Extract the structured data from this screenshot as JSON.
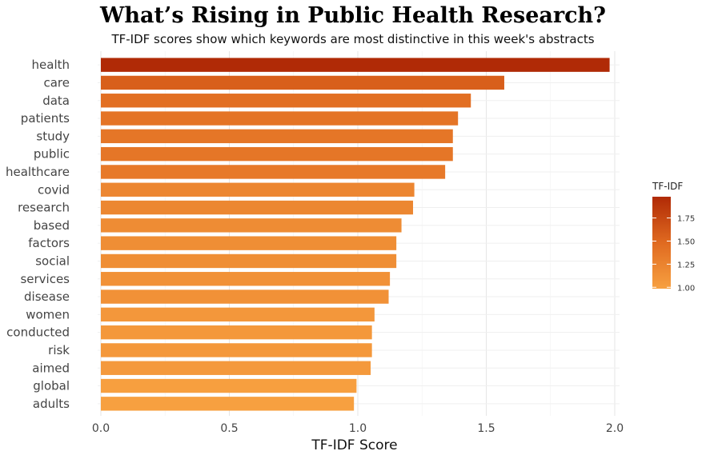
{
  "chart_data": {
    "type": "bar",
    "orientation": "horizontal",
    "title": "What’s Rising in Public Health Research?",
    "subtitle": "TF-IDF scores show which keywords are most distinctive in this week's abstracts",
    "xlabel": "TF-IDF Score",
    "ylabel": "",
    "xlim": [
      0,
      2.05
    ],
    "xticks": [
      "0.0",
      "0.5",
      "1.0",
      "1.5",
      "2.0"
    ],
    "grid": true,
    "categories": [
      "health",
      "care",
      "data",
      "patients",
      "study",
      "public",
      "healthcare",
      "covid",
      "research",
      "based",
      "factors",
      "social",
      "services",
      "disease",
      "women",
      "conducted",
      "risk",
      "aimed",
      "global",
      "adults"
    ],
    "values": [
      1.98,
      1.57,
      1.44,
      1.39,
      1.37,
      1.37,
      1.34,
      1.22,
      1.215,
      1.17,
      1.15,
      1.15,
      1.125,
      1.12,
      1.065,
      1.055,
      1.055,
      1.05,
      0.995,
      0.985
    ],
    "legend": {
      "title": "TF-IDF",
      "position": "right",
      "ticks": [
        "1.00",
        "1.25",
        "1.50",
        "1.75"
      ],
      "tick_values": [
        1.0,
        1.25,
        1.5,
        1.75
      ],
      "range": [
        0.985,
        1.98
      ]
    },
    "colors": {
      "low": "#F7A040",
      "high": "#B02A06"
    }
  }
}
